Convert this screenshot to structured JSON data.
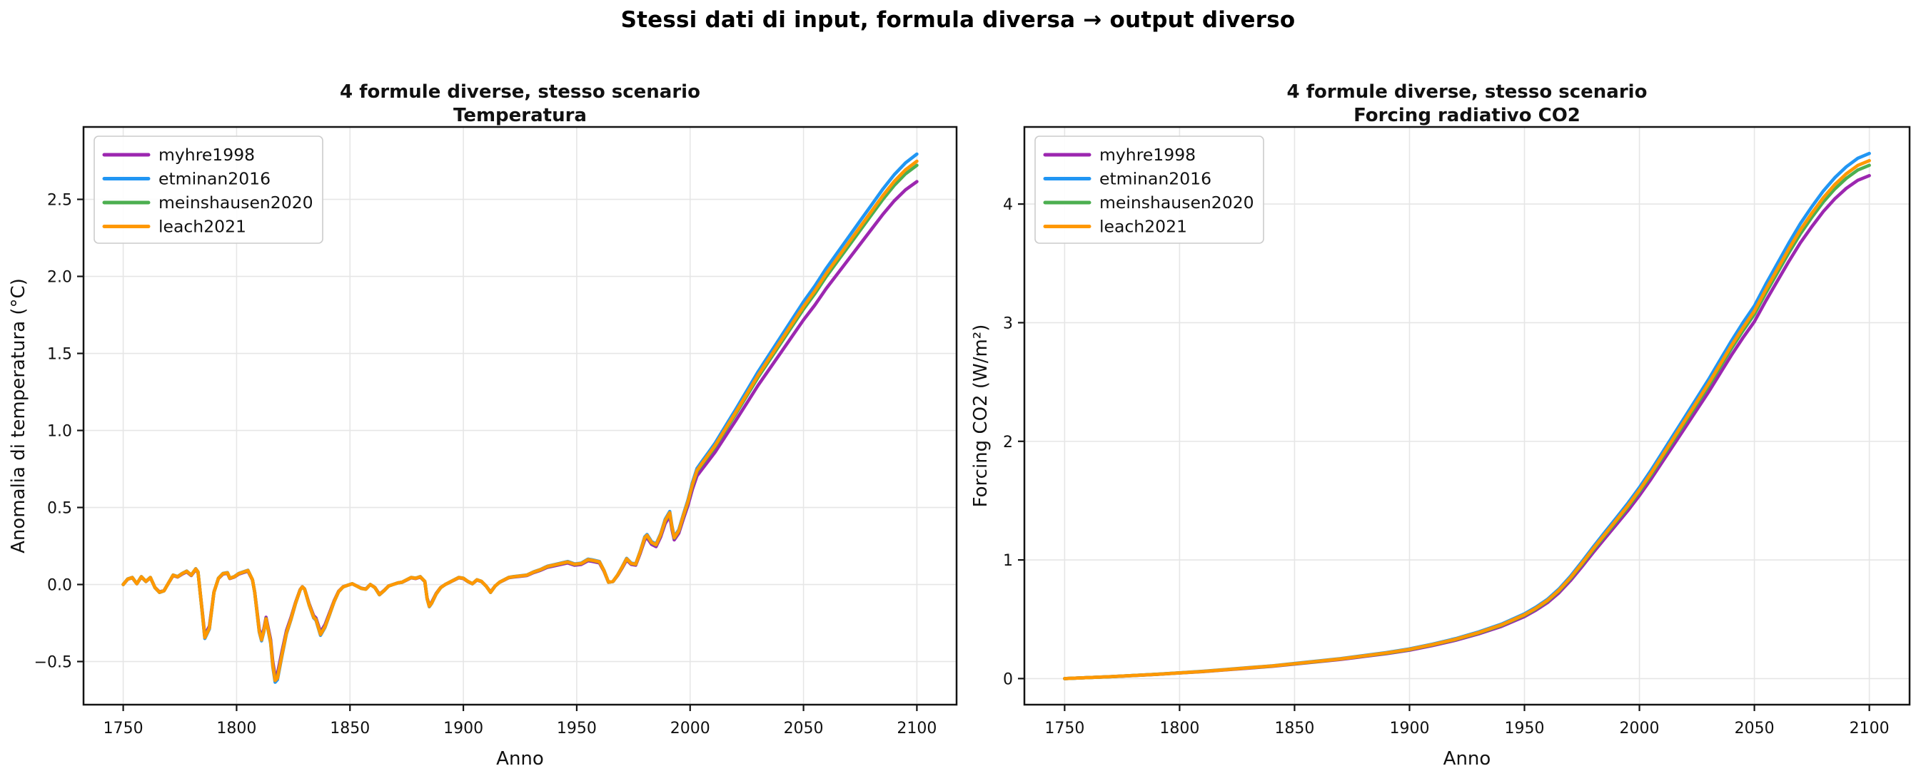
{
  "figure": {
    "suptitle": "Stessi dati di input, formula diversa → output diverso"
  },
  "chart_data": [
    {
      "type": "line",
      "title": "4 formule diverse, stesso scenario",
      "subtitle": "Temperatura",
      "xlabel": "Anno",
      "ylabel": "Anomalia di temperatura (°C)",
      "xlim": [
        1732.5,
        2117.5
      ],
      "ylim": [
        -0.78,
        2.97
      ],
      "grid": true,
      "xticks": [
        1750,
        1800,
        1850,
        1900,
        1950,
        2000,
        2050,
        2100
      ],
      "xtick_labels": [
        "1750",
        "1800",
        "1850",
        "1900",
        "1950",
        "2000",
        "2050",
        "2100"
      ],
      "yticks": [
        -0.5,
        0.0,
        0.5,
        1.0,
        1.5,
        2.0,
        2.5
      ],
      "ytick_labels": [
        "−0.5",
        "0.0",
        "0.5",
        "1.0",
        "1.5",
        "2.0",
        "2.5"
      ],
      "legend": {
        "position": "upper-left",
        "entries": [
          "myhre1998",
          "etminan2016",
          "meinshausen2020",
          "leach2021"
        ]
      },
      "series": [
        {
          "name": "myhre1998",
          "color": "#9C27B0",
          "scale": 0.965
        },
        {
          "name": "etminan2016",
          "color": "#2196F3",
          "scale": 1.031
        },
        {
          "name": "meinshausen2020",
          "color": "#4CAF50",
          "scale": 1.004
        },
        {
          "name": "leach2021",
          "color": "#FF9800",
          "scale": 1.014
        }
      ],
      "base_points": [
        [
          1750,
          0.0
        ],
        [
          1752,
          0.035
        ],
        [
          1754,
          0.045
        ],
        [
          1756,
          0.005
        ],
        [
          1758,
          0.05
        ],
        [
          1760,
          0.02
        ],
        [
          1762,
          0.045
        ],
        [
          1764,
          -0.02
        ],
        [
          1766,
          -0.05
        ],
        [
          1768,
          -0.04
        ],
        [
          1770,
          0.01
        ],
        [
          1772,
          0.06
        ],
        [
          1774,
          0.05
        ],
        [
          1776,
          0.07
        ],
        [
          1778,
          0.085
        ],
        [
          1780,
          0.06
        ],
        [
          1782,
          0.1
        ],
        [
          1783,
          0.08
        ],
        [
          1785,
          -0.2
        ],
        [
          1786,
          -0.34
        ],
        [
          1788,
          -0.28
        ],
        [
          1790,
          -0.05
        ],
        [
          1792,
          0.04
        ],
        [
          1794,
          0.07
        ],
        [
          1796,
          0.075
        ],
        [
          1797,
          0.04
        ],
        [
          1799,
          0.05
        ],
        [
          1801,
          0.07
        ],
        [
          1803,
          0.08
        ],
        [
          1805,
          0.09
        ],
        [
          1807,
          0.03
        ],
        [
          1808,
          -0.05
        ],
        [
          1810,
          -0.3
        ],
        [
          1811,
          -0.355
        ],
        [
          1812,
          -0.3
        ],
        [
          1813,
          -0.22
        ],
        [
          1815,
          -0.37
        ],
        [
          1816,
          -0.52
        ],
        [
          1817,
          -0.615
        ],
        [
          1818,
          -0.6
        ],
        [
          1820,
          -0.45
        ],
        [
          1822,
          -0.31
        ],
        [
          1824,
          -0.22
        ],
        [
          1826,
          -0.12
        ],
        [
          1828,
          -0.035
        ],
        [
          1829,
          -0.015
        ],
        [
          1830,
          -0.03
        ],
        [
          1832,
          -0.13
        ],
        [
          1834,
          -0.21
        ],
        [
          1835,
          -0.225
        ],
        [
          1837,
          -0.32
        ],
        [
          1839,
          -0.27
        ],
        [
          1841,
          -0.19
        ],
        [
          1843,
          -0.11
        ],
        [
          1845,
          -0.045
        ],
        [
          1847,
          -0.015
        ],
        [
          1849,
          -0.005
        ],
        [
          1851,
          0.005
        ],
        [
          1853,
          -0.01
        ],
        [
          1855,
          -0.025
        ],
        [
          1857,
          -0.03
        ],
        [
          1859,
          0.0
        ],
        [
          1861,
          -0.02
        ],
        [
          1863,
          -0.065
        ],
        [
          1865,
          -0.04
        ],
        [
          1867,
          -0.01
        ],
        [
          1869,
          0.0
        ],
        [
          1871,
          0.01
        ],
        [
          1873,
          0.015
        ],
        [
          1875,
          0.03
        ],
        [
          1877,
          0.045
        ],
        [
          1879,
          0.04
        ],
        [
          1881,
          0.05
        ],
        [
          1883,
          0.02
        ],
        [
          1884,
          -0.09
        ],
        [
          1885,
          -0.14
        ],
        [
          1886,
          -0.12
        ],
        [
          1888,
          -0.06
        ],
        [
          1890,
          -0.02
        ],
        [
          1892,
          0.0
        ],
        [
          1894,
          0.015
        ],
        [
          1896,
          0.03
        ],
        [
          1898,
          0.045
        ],
        [
          1900,
          0.04
        ],
        [
          1902,
          0.02
        ],
        [
          1904,
          0.005
        ],
        [
          1906,
          0.03
        ],
        [
          1908,
          0.02
        ],
        [
          1910,
          -0.01
        ],
        [
          1912,
          -0.05
        ],
        [
          1914,
          -0.01
        ],
        [
          1916,
          0.015
        ],
        [
          1918,
          0.03
        ],
        [
          1920,
          0.045
        ],
        [
          1922,
          0.05
        ],
        [
          1925,
          0.055
        ],
        [
          1928,
          0.06
        ],
        [
          1931,
          0.08
        ],
        [
          1934,
          0.095
        ],
        [
          1937,
          0.115
        ],
        [
          1940,
          0.125
        ],
        [
          1943,
          0.135
        ],
        [
          1946,
          0.145
        ],
        [
          1949,
          0.13
        ],
        [
          1952,
          0.135
        ],
        [
          1955,
          0.16
        ],
        [
          1957,
          0.155
        ],
        [
          1960,
          0.145
        ],
        [
          1962,
          0.09
        ],
        [
          1964,
          0.015
        ],
        [
          1966,
          0.02
        ],
        [
          1968,
          0.06
        ],
        [
          1970,
          0.11
        ],
        [
          1972,
          0.165
        ],
        [
          1974,
          0.135
        ],
        [
          1976,
          0.13
        ],
        [
          1978,
          0.21
        ],
        [
          1980,
          0.3
        ],
        [
          1981,
          0.315
        ],
        [
          1983,
          0.27
        ],
        [
          1985,
          0.255
        ],
        [
          1987,
          0.32
        ],
        [
          1989,
          0.41
        ],
        [
          1991,
          0.46
        ],
        [
          1992,
          0.37
        ],
        [
          1993,
          0.3
        ],
        [
          1995,
          0.345
        ],
        [
          1997,
          0.44
        ],
        [
          1999,
          0.53
        ],
        [
          2001,
          0.64
        ],
        [
          2003,
          0.73
        ],
        [
          2005,
          0.77
        ],
        [
          2008,
          0.83
        ],
        [
          2011,
          0.89
        ],
        [
          2014,
          0.96
        ],
        [
          2017,
          1.03
        ],
        [
          2020,
          1.1
        ],
        [
          2025,
          1.22
        ],
        [
          2030,
          1.34
        ],
        [
          2035,
          1.45
        ],
        [
          2040,
          1.56
        ],
        [
          2045,
          1.67
        ],
        [
          2050,
          1.78
        ],
        [
          2055,
          1.88
        ],
        [
          2060,
          1.99
        ],
        [
          2065,
          2.09
        ],
        [
          2070,
          2.19
        ],
        [
          2075,
          2.29
        ],
        [
          2080,
          2.39
        ],
        [
          2085,
          2.49
        ],
        [
          2090,
          2.58
        ],
        [
          2095,
          2.655
        ],
        [
          2100,
          2.71
        ]
      ]
    },
    {
      "type": "line",
      "title": "4 formule diverse, stesso scenario",
      "subtitle": "Forcing radiativo CO2",
      "xlabel": "Anno",
      "ylabel": "Forcing CO2 (W/m²)",
      "xlim": [
        1732.5,
        2117.5
      ],
      "ylim": [
        -0.22,
        4.65
      ],
      "grid": true,
      "xticks": [
        1750,
        1800,
        1850,
        1900,
        1950,
        2000,
        2050,
        2100
      ],
      "xtick_labels": [
        "1750",
        "1800",
        "1850",
        "1900",
        "1950",
        "2000",
        "2050",
        "2100"
      ],
      "yticks": [
        0,
        1,
        2,
        3,
        4
      ],
      "ytick_labels": [
        "0",
        "1",
        "2",
        "3",
        "4"
      ],
      "legend": {
        "position": "upper-left",
        "entries": [
          "myhre1998",
          "etminan2016",
          "meinshausen2020",
          "leach2021"
        ]
      },
      "series": [
        {
          "name": "myhre1998",
          "color": "#9C27B0",
          "scale": 0.977
        },
        {
          "name": "etminan2016",
          "color": "#2196F3",
          "scale": 1.02
        },
        {
          "name": "meinshausen2020",
          "color": "#4CAF50",
          "scale": 0.997
        },
        {
          "name": "leach2021",
          "color": "#FF9800",
          "scale": 1.006
        }
      ],
      "base_points": [
        [
          1750,
          0.0
        ],
        [
          1760,
          0.008
        ],
        [
          1770,
          0.016
        ],
        [
          1780,
          0.026
        ],
        [
          1790,
          0.036
        ],
        [
          1800,
          0.048
        ],
        [
          1810,
          0.06
        ],
        [
          1820,
          0.075
        ],
        [
          1830,
          0.09
        ],
        [
          1840,
          0.105
        ],
        [
          1850,
          0.125
        ],
        [
          1860,
          0.145
        ],
        [
          1870,
          0.165
        ],
        [
          1880,
          0.19
        ],
        [
          1890,
          0.215
        ],
        [
          1900,
          0.245
        ],
        [
          1910,
          0.285
        ],
        [
          1920,
          0.33
        ],
        [
          1930,
          0.385
        ],
        [
          1940,
          0.45
        ],
        [
          1950,
          0.535
        ],
        [
          1955,
          0.59
        ],
        [
          1960,
          0.655
        ],
        [
          1965,
          0.74
        ],
        [
          1970,
          0.845
        ],
        [
          1975,
          0.965
        ],
        [
          1980,
          1.09
        ],
        [
          1985,
          1.21
        ],
        [
          1990,
          1.33
        ],
        [
          1995,
          1.45
        ],
        [
          2000,
          1.58
        ],
        [
          2005,
          1.72
        ],
        [
          2010,
          1.87
        ],
        [
          2015,
          2.02
        ],
        [
          2020,
          2.17
        ],
        [
          2025,
          2.32
        ],
        [
          2030,
          2.47
        ],
        [
          2035,
          2.63
        ],
        [
          2040,
          2.79
        ],
        [
          2045,
          2.94
        ],
        [
          2050,
          3.08
        ],
        [
          2055,
          3.26
        ],
        [
          2060,
          3.43
        ],
        [
          2065,
          3.6
        ],
        [
          2070,
          3.76
        ],
        [
          2075,
          3.9
        ],
        [
          2080,
          4.03
        ],
        [
          2085,
          4.14
        ],
        [
          2090,
          4.23
        ],
        [
          2095,
          4.3
        ],
        [
          2100,
          4.34
        ]
      ]
    }
  ]
}
